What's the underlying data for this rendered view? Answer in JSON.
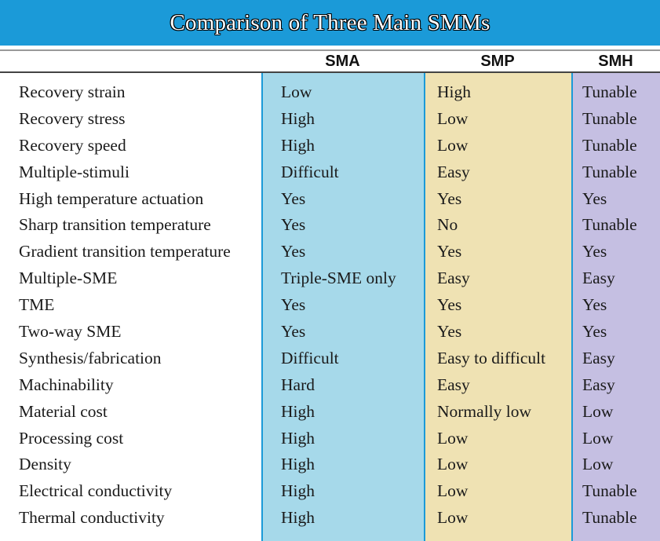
{
  "title": "Comparison of Three Main SMMs",
  "columns": {
    "property": "",
    "sma": "SMA",
    "smp": "SMP",
    "smh": "SMH"
  },
  "colors": {
    "title_bar": "#1b9ad8",
    "sma_column": "#a6d9ea",
    "smp_column": "#efe2b3",
    "smh_column": "#c5bfe2"
  },
  "rows": [
    {
      "property": "Recovery strain",
      "sma": "Low",
      "smp": "High",
      "smh": "Tunable"
    },
    {
      "property": "Recovery stress",
      "sma": "High",
      "smp": "Low",
      "smh": "Tunable"
    },
    {
      "property": "Recovery speed",
      "sma": "High",
      "smp": "Low",
      "smh": "Tunable"
    },
    {
      "property": "Multiple-stimuli",
      "sma": "Difficult",
      "smp": "Easy",
      "smh": "Tunable"
    },
    {
      "property": "High temperature actuation",
      "sma": "Yes",
      "smp": "Yes",
      "smh": "Yes"
    },
    {
      "property": "Sharp transition temperature",
      "sma": "Yes",
      "smp": "No",
      "smh": "Tunable"
    },
    {
      "property": "Gradient transition temperature",
      "sma": "Yes",
      "smp": "Yes",
      "smh": "Yes"
    },
    {
      "property": "Multiple-SME",
      "sma": "Triple-SME only",
      "smp": "Easy",
      "smh": "Easy"
    },
    {
      "property": "TME",
      "sma": "Yes",
      "smp": "Yes",
      "smh": "Yes"
    },
    {
      "property": "Two-way SME",
      "sma": "Yes",
      "smp": "Yes",
      "smh": "Yes"
    },
    {
      "property": "Synthesis/fabrication",
      "sma": "Difficult",
      "smp": "Easy to difficult",
      "smh": "Easy"
    },
    {
      "property": "Machinability",
      "sma": "Hard",
      "smp": "Easy",
      "smh": "Easy"
    },
    {
      "property": "Material cost",
      "sma": "High",
      "smp": "Normally low",
      "smh": "Low"
    },
    {
      "property": "Processing cost",
      "sma": "High",
      "smp": "Low",
      "smh": "Low"
    },
    {
      "property": "Density",
      "sma": "High",
      "smp": "Low",
      "smh": "Low"
    },
    {
      "property": "Electrical conductivity",
      "sma": "High",
      "smp": "Low",
      "smh": "Tunable"
    },
    {
      "property": "Thermal conductivity",
      "sma": "High",
      "smp": "Low",
      "smh": "Tunable"
    }
  ]
}
